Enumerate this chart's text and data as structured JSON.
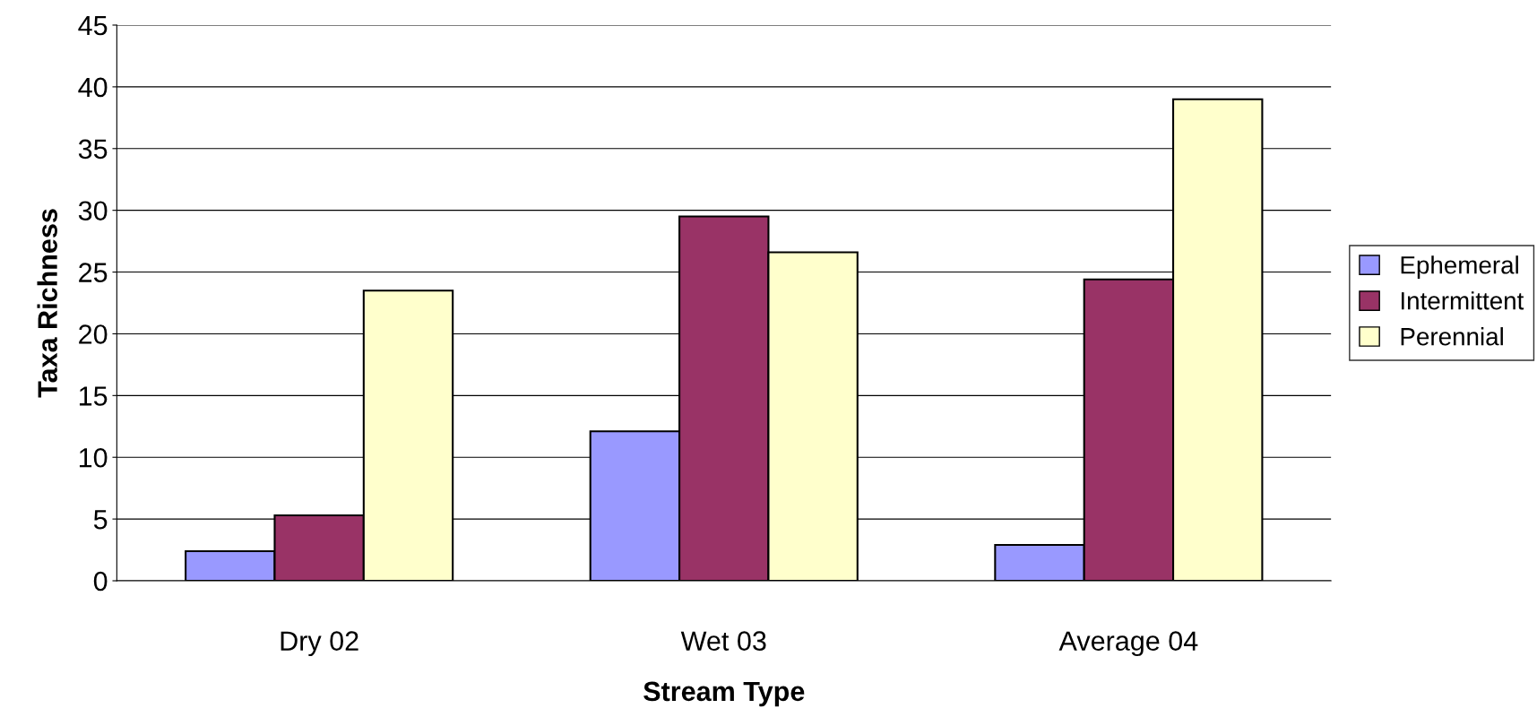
{
  "chart_data": {
    "type": "bar",
    "xlabel": "Stream Type",
    "ylabel": "Taxa Richness",
    "categories": [
      "Dry 02",
      "Wet 03",
      "Average 04"
    ],
    "series": [
      {
        "name": "Ephemeral",
        "color": "#9999ff",
        "values": [
          2.4,
          12.1,
          2.9
        ]
      },
      {
        "name": "Intermittent",
        "color": "#993366",
        "values": [
          5.3,
          29.5,
          24.4
        ]
      },
      {
        "name": "Perennial",
        "color": "#ffffcc",
        "values": [
          23.5,
          26.6,
          39
        ]
      }
    ],
    "ylim": [
      0,
      45
    ],
    "yticks": [
      0,
      5,
      10,
      15,
      20,
      25,
      30,
      35,
      40,
      45
    ],
    "grid": "y",
    "legend": "right"
  }
}
